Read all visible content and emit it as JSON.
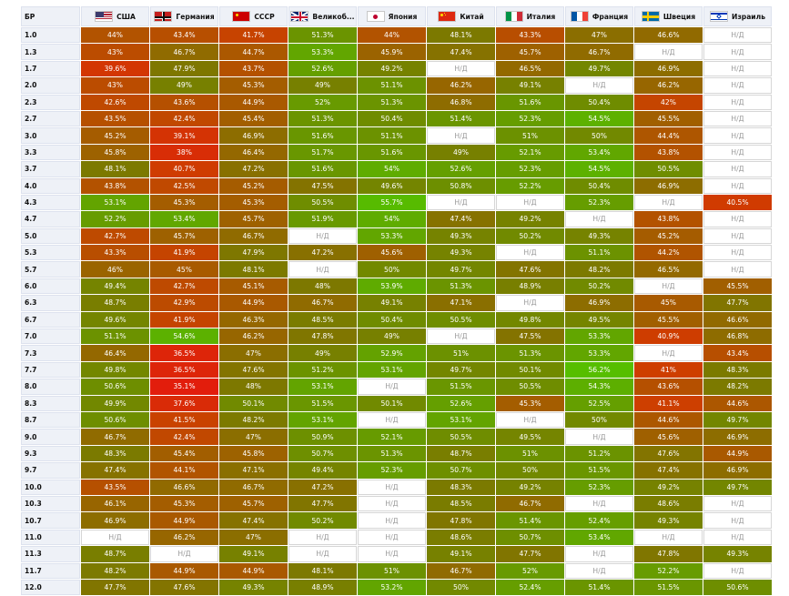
{
  "header": {
    "br_label": "БР",
    "countries": [
      {
        "name": "США",
        "flag_icon": "us-flag-icon"
      },
      {
        "name": "Германия",
        "flag_icon": "germany-flag-icon"
      },
      {
        "name": "СССР",
        "flag_icon": "ussr-flag-icon"
      },
      {
        "name": "Великоб...",
        "flag_icon": "uk-flag-icon"
      },
      {
        "name": "Япония",
        "flag_icon": "japan-flag-icon"
      },
      {
        "name": "Китай",
        "flag_icon": "china-flag-icon"
      },
      {
        "name": "Италия",
        "flag_icon": "italy-flag-icon"
      },
      {
        "name": "Франция",
        "flag_icon": "france-flag-icon"
      },
      {
        "name": "Швеция",
        "flag_icon": "sweden-flag-icon"
      },
      {
        "name": "Израиль",
        "flag_icon": "israel-flag-icon"
      }
    ]
  },
  "na_label": "Н/Д",
  "rows": [
    {
      "br": "1.0",
      "values": [
        "44%",
        "43.4%",
        "41.7%",
        "51.3%",
        "44%",
        "48.1%",
        "43.3%",
        "47%",
        "46.6%",
        null
      ]
    },
    {
      "br": "1.3",
      "values": [
        "43%",
        "46.7%",
        "44.7%",
        "53.3%",
        "45.9%",
        "47.4%",
        "45.7%",
        "46.7%",
        null,
        null
      ]
    },
    {
      "br": "1.7",
      "values": [
        "39.6%",
        "47.9%",
        "43.7%",
        "52.6%",
        "49.2%",
        null,
        "46.5%",
        "49.7%",
        "46.9%",
        null
      ]
    },
    {
      "br": "2.0",
      "values": [
        "43%",
        "49%",
        "45.3%",
        "49%",
        "51.1%",
        "46.2%",
        "49.1%",
        null,
        "46.2%",
        null
      ]
    },
    {
      "br": "2.3",
      "values": [
        "42.6%",
        "43.6%",
        "44.9%",
        "52%",
        "51.3%",
        "46.8%",
        "51.6%",
        "50.4%",
        "42%",
        null
      ]
    },
    {
      "br": "2.7",
      "values": [
        "43.5%",
        "42.4%",
        "45.4%",
        "51.3%",
        "50.4%",
        "51.4%",
        "52.3%",
        "54.5%",
        "45.5%",
        null
      ]
    },
    {
      "br": "3.0",
      "values": [
        "45.2%",
        "39.1%",
        "46.9%",
        "51.6%",
        "51.1%",
        null,
        "51%",
        "50%",
        "44.4%",
        null
      ]
    },
    {
      "br": "3.3",
      "values": [
        "45.8%",
        "38%",
        "46.4%",
        "51.7%",
        "51.6%",
        "49%",
        "52.1%",
        "53.4%",
        "43.8%",
        null
      ]
    },
    {
      "br": "3.7",
      "values": [
        "48.1%",
        "40.7%",
        "47.2%",
        "51.6%",
        "54%",
        "52.6%",
        "52.3%",
        "54.5%",
        "50.5%",
        null
      ]
    },
    {
      "br": "4.0",
      "values": [
        "43.8%",
        "42.5%",
        "45.2%",
        "47.5%",
        "49.6%",
        "50.8%",
        "52.2%",
        "50.4%",
        "46.9%",
        null
      ]
    },
    {
      "br": "4.3",
      "values": [
        "53.1%",
        "45.3%",
        "45.3%",
        "50.5%",
        "55.7%",
        null,
        null,
        "52.3%",
        null,
        "40.5%"
      ]
    },
    {
      "br": "4.7",
      "values": [
        "52.2%",
        "53.4%",
        "45.7%",
        "51.9%",
        "54%",
        "47.4%",
        "49.2%",
        null,
        "43.8%",
        null
      ]
    },
    {
      "br": "5.0",
      "values": [
        "42.7%",
        "45.7%",
        "46.7%",
        null,
        "53.3%",
        "49.3%",
        "50.2%",
        "49.3%",
        "45.2%",
        null
      ]
    },
    {
      "br": "5.3",
      "values": [
        "43.3%",
        "41.9%",
        "47.9%",
        "47.2%",
        "45.6%",
        "49.3%",
        null,
        "51.1%",
        "44.2%",
        null
      ]
    },
    {
      "br": "5.7",
      "values": [
        "46%",
        "45%",
        "48.1%",
        null,
        "50%",
        "49.7%",
        "47.6%",
        "48.2%",
        "46.5%",
        null
      ]
    },
    {
      "br": "6.0",
      "values": [
        "49.4%",
        "42.7%",
        "45.1%",
        "48%",
        "53.9%",
        "51.3%",
        "48.9%",
        "50.2%",
        null,
        "45.5%"
      ]
    },
    {
      "br": "6.3",
      "values": [
        "48.7%",
        "42.9%",
        "44.9%",
        "46.7%",
        "49.1%",
        "47.1%",
        null,
        "46.9%",
        "45%",
        "47.7%"
      ]
    },
    {
      "br": "6.7",
      "values": [
        "49.6%",
        "41.9%",
        "46.3%",
        "48.5%",
        "50.4%",
        "50.5%",
        "49.8%",
        "49.5%",
        "45.5%",
        "46.6%"
      ]
    },
    {
      "br": "7.0",
      "values": [
        "51.1%",
        "54.6%",
        "46.2%",
        "47.8%",
        "49%",
        null,
        "47.5%",
        "53.3%",
        "40.9%",
        "46.8%"
      ]
    },
    {
      "br": "7.3",
      "values": [
        "46.4%",
        "36.5%",
        "47%",
        "49%",
        "52.9%",
        "51%",
        "51.3%",
        "53.3%",
        null,
        "43.4%"
      ]
    },
    {
      "br": "7.7",
      "values": [
        "49.8%",
        "36.5%",
        "47.6%",
        "51.2%",
        "53.1%",
        "49.7%",
        "50.1%",
        "56.2%",
        "41%",
        "48.3%"
      ]
    },
    {
      "br": "8.0",
      "values": [
        "50.6%",
        "35.1%",
        "48%",
        "53.1%",
        null,
        "51.5%",
        "50.5%",
        "54.3%",
        "43.6%",
        "48.2%"
      ]
    },
    {
      "br": "8.3",
      "values": [
        "49.9%",
        "37.6%",
        "50.1%",
        "51.5%",
        "50.1%",
        "52.6%",
        "45.3%",
        "52.5%",
        "41.1%",
        "44.6%"
      ]
    },
    {
      "br": "8.7",
      "values": [
        "50.6%",
        "41.5%",
        "48.2%",
        "53.1%",
        null,
        "53.1%",
        null,
        "50%",
        "44.6%",
        "49.7%"
      ]
    },
    {
      "br": "9.0",
      "values": [
        "46.7%",
        "42.4%",
        "47%",
        "50.9%",
        "52.1%",
        "50.5%",
        "49.5%",
        null,
        "45.6%",
        "46.9%"
      ]
    },
    {
      "br": "9.3",
      "values": [
        "48.3%",
        "45.4%",
        "45.8%",
        "50.7%",
        "51.3%",
        "48.7%",
        "51%",
        "51.2%",
        "47.6%",
        "44.9%"
      ]
    },
    {
      "br": "9.7",
      "values": [
        "47.4%",
        "44.1%",
        "47.1%",
        "49.4%",
        "52.3%",
        "50.7%",
        "50%",
        "51.5%",
        "47.4%",
        "46.9%"
      ]
    },
    {
      "br": "10.0",
      "values": [
        "43.5%",
        "46.6%",
        "46.7%",
        "47.2%",
        null,
        "48.3%",
        "49.2%",
        "52.3%",
        "49.2%",
        "49.7%"
      ]
    },
    {
      "br": "10.3",
      "values": [
        "46.1%",
        "45.3%",
        "45.7%",
        "47.7%",
        null,
        "48.5%",
        "46.7%",
        null,
        "48.6%",
        null
      ]
    },
    {
      "br": "10.7",
      "values": [
        "46.9%",
        "44.9%",
        "47.4%",
        "50.2%",
        null,
        "47.8%",
        "51.4%",
        "52.4%",
        "49.3%",
        null
      ]
    },
    {
      "br": "11.0",
      "values": [
        null,
        "46.2%",
        "47%",
        null,
        null,
        "48.6%",
        "50.7%",
        "53.4%",
        null,
        null
      ]
    },
    {
      "br": "11.3",
      "values": [
        "48.7%",
        null,
        "49.1%",
        null,
        null,
        "49.1%",
        "47.7%",
        null,
        "47.8%",
        "49.3%"
      ]
    },
    {
      "br": "11.7",
      "values": [
        "48.2%",
        "44.9%",
        "44.9%",
        "48.1%",
        "51%",
        "46.7%",
        "52%",
        null,
        "52.2%",
        null
      ]
    },
    {
      "br": "12.0",
      "values": [
        "47.7%",
        "47.6%",
        "49.3%",
        "48.9%",
        "53.2%",
        "50%",
        "52.4%",
        "51.4%",
        "51.5%",
        "50.6%"
      ]
    }
  ]
}
